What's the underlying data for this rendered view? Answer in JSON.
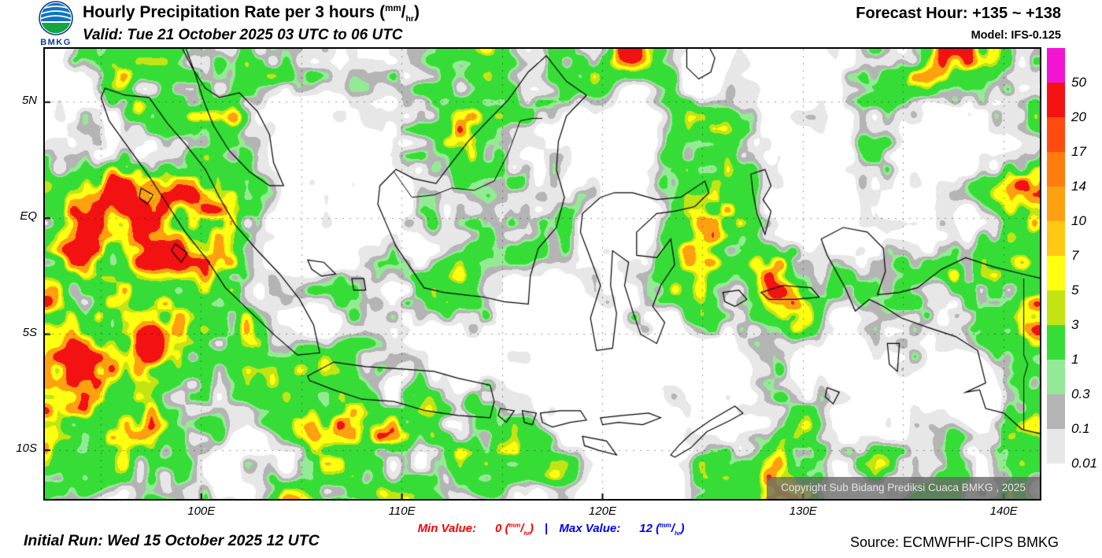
{
  "unit": {
    "open": "(",
    "num": "mm",
    "slash": "/",
    "den": "hr",
    "close": ")"
  },
  "header": {
    "logo_text": "BMKG",
    "title_text": "Hourly Precipitation Rate per 3 hours",
    "valid": "Valid: Tue 21 October 2025 03 UTC to 06 UTC",
    "forecast_hour": "Forecast Hour: +135 ~ +138",
    "model": "Model: IFS-0.125"
  },
  "map": {
    "extent": {
      "lon_min": 92.2,
      "lon_max": 141.8,
      "lat_min": -12.1,
      "lat_max": 7.3
    },
    "lat_labels": [
      {
        "text": "5N",
        "lat": 5
      },
      {
        "text": "EQ",
        "lat": 0
      },
      {
        "text": "5S",
        "lat": -5
      },
      {
        "text": "10S",
        "lat": -10
      }
    ],
    "lon_labels": [
      {
        "text": "100E",
        "lon": 100
      },
      {
        "text": "110E",
        "lon": 110
      },
      {
        "text": "120E",
        "lon": 120
      },
      {
        "text": "130E",
        "lon": 130
      },
      {
        "text": "140E",
        "lon": 140
      }
    ],
    "copyright": "Copyright Sub Bidang Prediksi Cuaca BMKG , 2025"
  },
  "legend": {
    "labels": [
      "50",
      "20",
      "17",
      "14",
      "10",
      "7",
      "5",
      "3",
      "1",
      "0.3",
      "0.1",
      "0.01"
    ],
    "colors": [
      "#f313d3",
      "#f31212",
      "#ff4a10",
      "#ff7d0e",
      "#ffa011",
      "#ffc913",
      "#ffff12",
      "#c3e412",
      "#37dd37",
      "#94ea94",
      "#b4b4b4",
      "#e7e7e7",
      "#ffffff"
    ]
  },
  "footer": {
    "initial_run": "Initial Run: Wed 15 October 2025 12 UTC",
    "min_label": "Min Value:",
    "min_value": "0",
    "separator": "|",
    "max_label": "Max Value:",
    "max_value": "12",
    "min_color": "#ff0000",
    "max_color": "#0000ff",
    "source": "Source: ECMWFHF-CIPS BMKG"
  }
}
